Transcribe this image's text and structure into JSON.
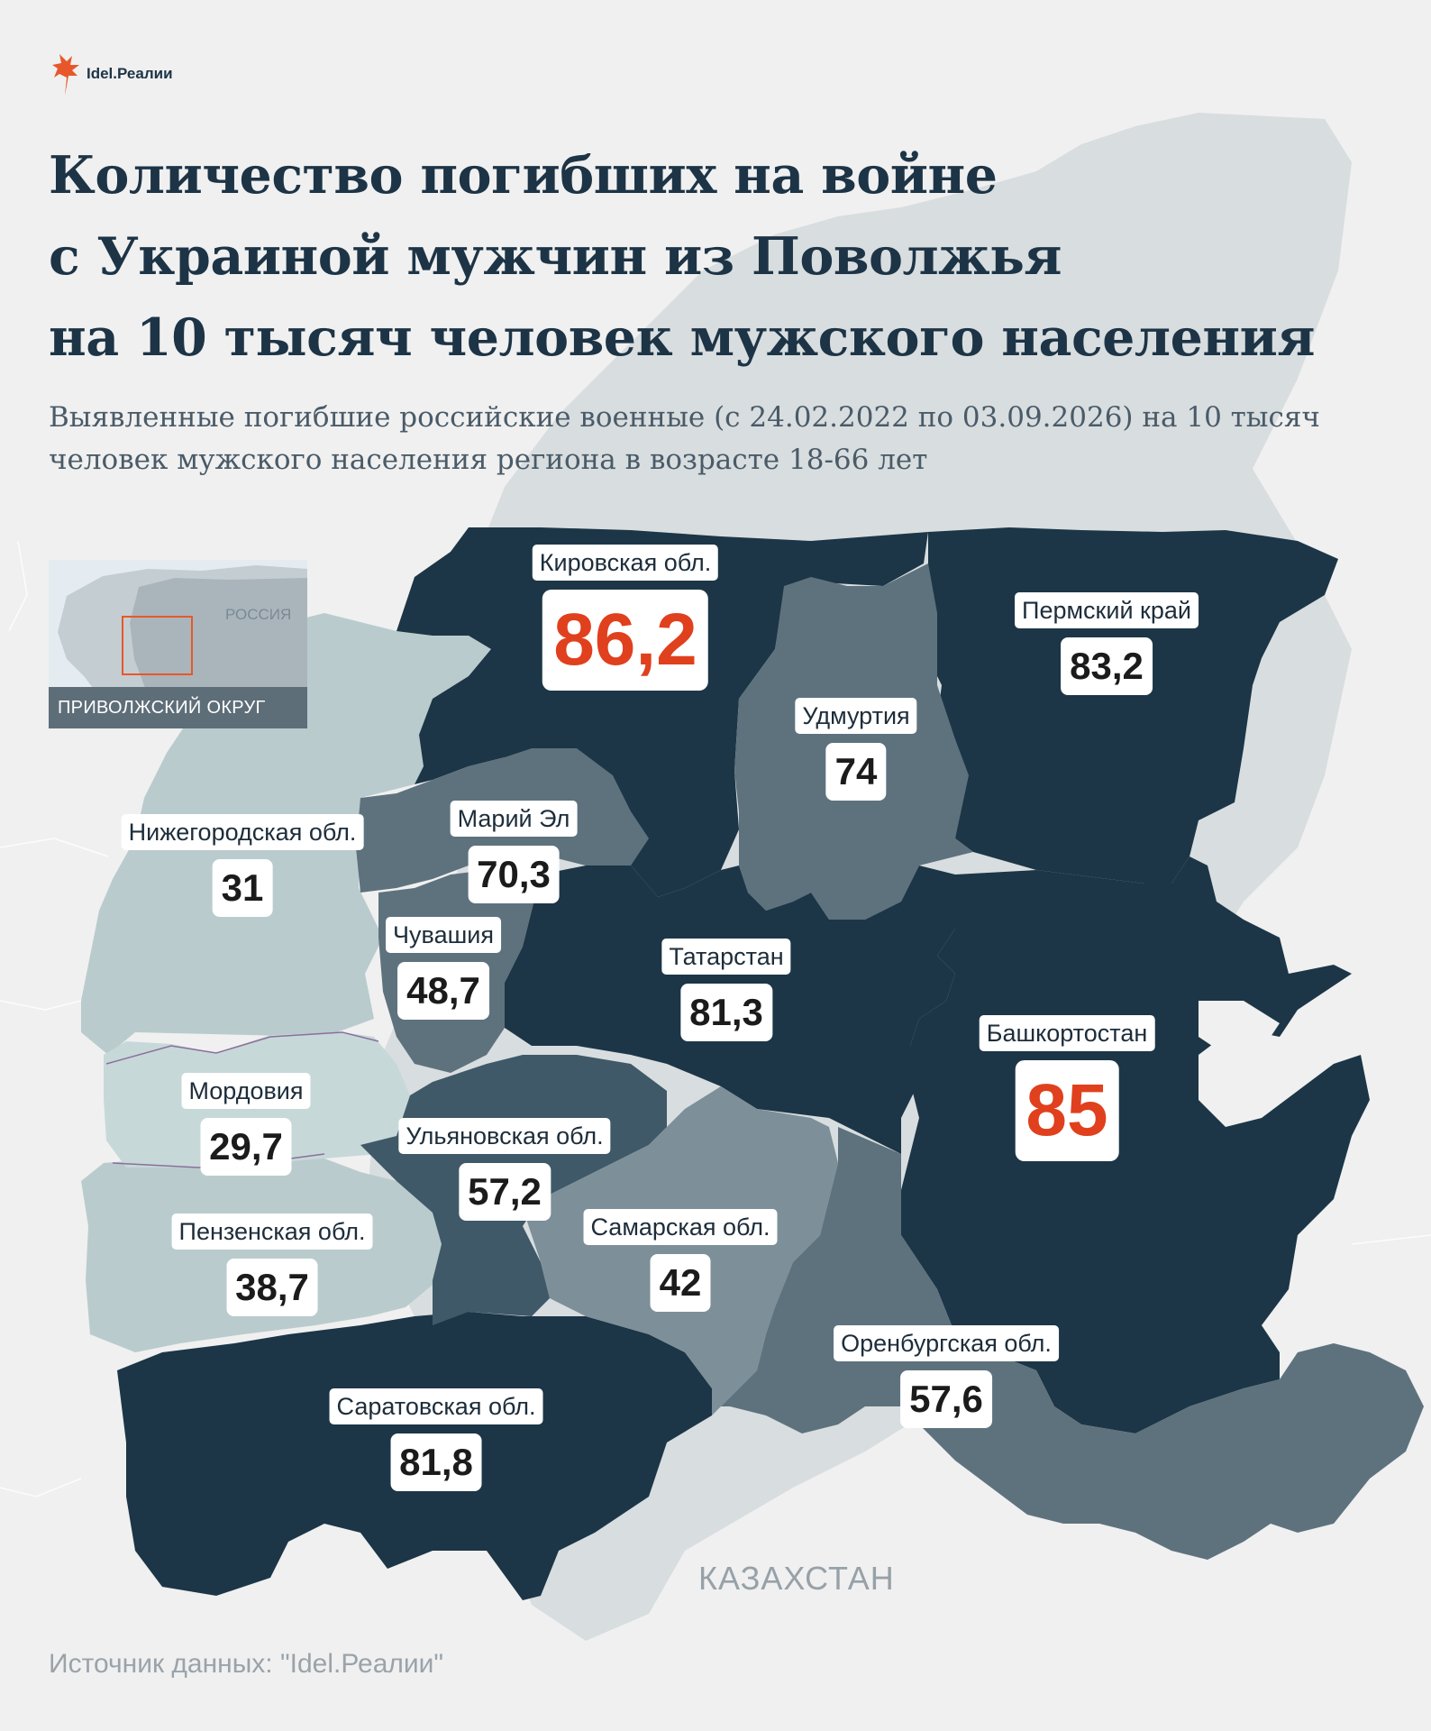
{
  "brand": {
    "name": "Idel.Реалии",
    "color": "#e8572a"
  },
  "title_lines": [
    "Количество погибших на войне",
    "с Украиной мужчин из Поволжья",
    "на 10 тысяч человек мужского населения"
  ],
  "subtitle": "Выявленные погибшие российские военные (с 24.02.2022 по 03.09.2026) на 10 тысяч человек мужского населения региона в возрасте 18-66 лет",
  "inset": {
    "country_label": "РОССИЯ",
    "caption": "ПРИВОЛЖСКИЙ ОКРУГ"
  },
  "colors": {
    "background": "#f0f0f0",
    "highest": "#1c3647",
    "high": "#3f5968",
    "middle": "#5e727e",
    "low": "#7d8f98",
    "lowest": "#b9cbcd",
    "highlight": "#e0401d"
  },
  "regions": [
    {
      "name": "Кировская обл.",
      "value": "86,2",
      "highlight": true,
      "shade": "highest"
    },
    {
      "name": "Пермский край",
      "value": "83,2",
      "highlight": false,
      "shade": "highest"
    },
    {
      "name": "Удмуртия",
      "value": "74",
      "highlight": false,
      "shade": "middle"
    },
    {
      "name": "Марий Эл",
      "value": "70,3",
      "highlight": false,
      "shade": "middle"
    },
    {
      "name": "Нижегородская обл.",
      "value": "31",
      "highlight": false,
      "shade": "lowest"
    },
    {
      "name": "Чувашия",
      "value": "48,7",
      "highlight": false,
      "shade": "middle"
    },
    {
      "name": "Татарстан",
      "value": "81,3",
      "highlight": false,
      "shade": "highest"
    },
    {
      "name": "Башкортостан",
      "value": "85",
      "highlight": true,
      "shade": "highest"
    },
    {
      "name": "Мордовия",
      "value": "29,7",
      "highlight": false,
      "shade": "lowest"
    },
    {
      "name": "Ульяновская обл.",
      "value": "57,2",
      "highlight": false,
      "shade": "high"
    },
    {
      "name": "Пензенская обл.",
      "value": "38,7",
      "highlight": false,
      "shade": "lowest"
    },
    {
      "name": "Самарская обл.",
      "value": "42",
      "highlight": false,
      "shade": "low"
    },
    {
      "name": "Оренбургская обл.",
      "value": "57,6",
      "highlight": false,
      "shade": "middle"
    },
    {
      "name": "Саратовская обл.",
      "value": "81,8",
      "highlight": false,
      "shade": "highest"
    }
  ],
  "neighbor_label": "КАЗАХСТАН",
  "source": "Источник данных: \"Idel.Реалии\""
}
